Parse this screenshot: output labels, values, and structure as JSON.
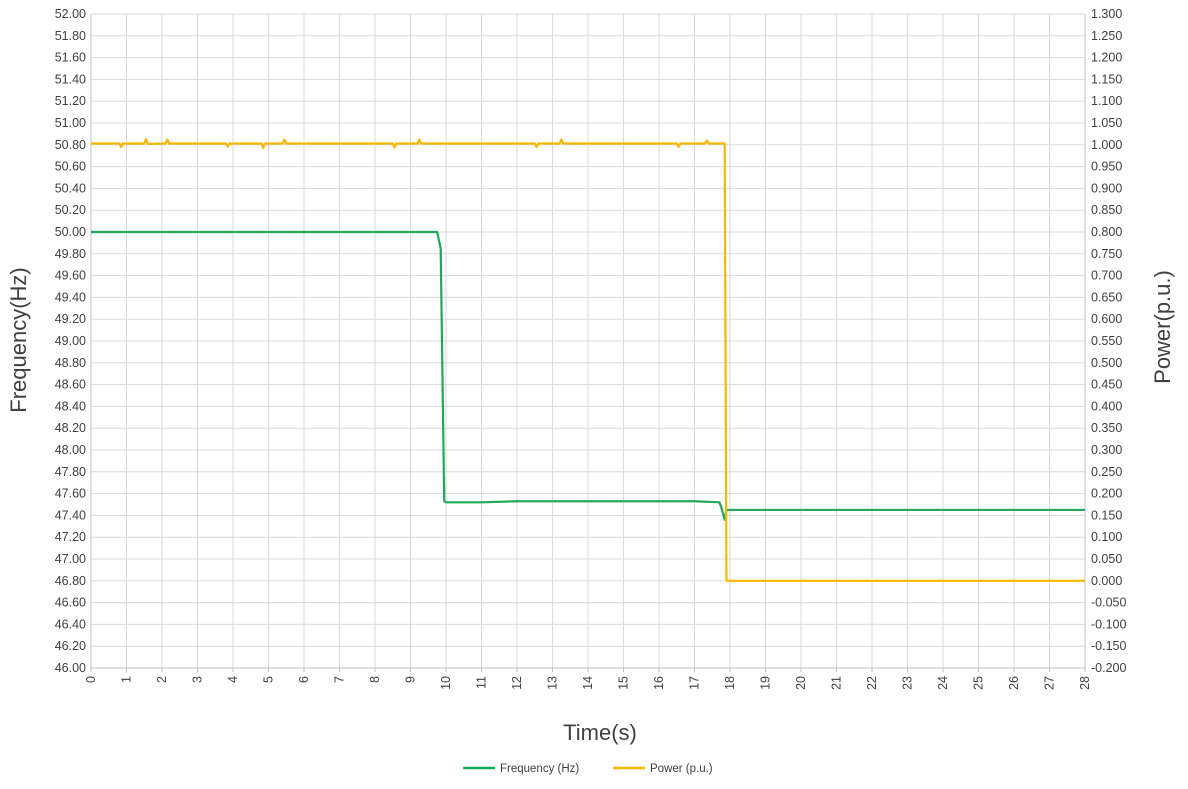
{
  "chart_data": {
    "type": "line",
    "title": "",
    "xlabel": "Time(s)",
    "ylabel": "Frequency(Hz)",
    "y2label": "Power(p.u.)",
    "xlim": [
      0,
      28
    ],
    "ylim": [
      46.0,
      52.0
    ],
    "y2lim": [
      -0.2,
      1.3
    ],
    "grid": true,
    "legend_position": "bottom",
    "x_ticks": [
      "0",
      "1",
      "2",
      "3",
      "4",
      "5",
      "6",
      "7",
      "8",
      "9",
      "10",
      "11",
      "12",
      "13",
      "14",
      "15",
      "16",
      "17",
      "18",
      "19",
      "20",
      "21",
      "22",
      "23",
      "24",
      "25",
      "26",
      "27",
      "28"
    ],
    "y_ticks": [
      "46.00",
      "46.20",
      "46.40",
      "46.60",
      "46.80",
      "47.00",
      "47.20",
      "47.40",
      "47.60",
      "47.80",
      "48.00",
      "48.20",
      "48.40",
      "48.60",
      "48.80",
      "49.00",
      "49.20",
      "49.40",
      "49.60",
      "49.80",
      "50.00",
      "50.20",
      "50.40",
      "50.60",
      "50.80",
      "51.00",
      "51.20",
      "51.40",
      "51.60",
      "51.80",
      "52.00"
    ],
    "y2_ticks": [
      "-0.200",
      "-0.150",
      "-0.100",
      "-0.050",
      "0.000",
      "0.050",
      "0.100",
      "0.150",
      "0.200",
      "0.250",
      "0.300",
      "0.350",
      "0.400",
      "0.450",
      "0.500",
      "0.550",
      "0.600",
      "0.650",
      "0.700",
      "0.750",
      "0.800",
      "0.850",
      "0.900",
      "0.950",
      "1.000",
      "1.050",
      "1.100",
      "1.150",
      "1.200",
      "1.250",
      "1.300"
    ],
    "series": [
      {
        "name": "Frequency (Hz)",
        "axis": "left",
        "color": "#1faa59",
        "points": [
          [
            0,
            50.0
          ],
          [
            1,
            50.0
          ],
          [
            2,
            50.0
          ],
          [
            3,
            50.0
          ],
          [
            4,
            50.0
          ],
          [
            5,
            50.0
          ],
          [
            6,
            50.0
          ],
          [
            7,
            50.0
          ],
          [
            8,
            50.0
          ],
          [
            9,
            50.0
          ],
          [
            9.75,
            50.0
          ],
          [
            9.85,
            49.85
          ],
          [
            9.95,
            47.53
          ],
          [
            10,
            47.52
          ],
          [
            11,
            47.52
          ],
          [
            12,
            47.53
          ],
          [
            13,
            47.53
          ],
          [
            14,
            47.53
          ],
          [
            15,
            47.53
          ],
          [
            16,
            47.53
          ],
          [
            17,
            47.53
          ],
          [
            17.7,
            47.52
          ],
          [
            17.75,
            47.48
          ],
          [
            17.85,
            47.36
          ],
          [
            17.9,
            47.45
          ],
          [
            18,
            47.45
          ],
          [
            19,
            47.45
          ],
          [
            20,
            47.45
          ],
          [
            21,
            47.45
          ],
          [
            22,
            47.45
          ],
          [
            23,
            47.45
          ],
          [
            24,
            47.45
          ],
          [
            25,
            47.45
          ],
          [
            26,
            47.45
          ],
          [
            27,
            47.45
          ],
          [
            28,
            47.45
          ]
        ]
      },
      {
        "name": "Power (p.u.)",
        "axis": "right",
        "color": "#f5b800",
        "points": [
          [
            0,
            1.003
          ],
          [
            0.8,
            1.003
          ],
          [
            0.85,
            0.995
          ],
          [
            0.9,
            1.003
          ],
          [
            1.5,
            1.003
          ],
          [
            1.55,
            1.013
          ],
          [
            1.6,
            1.002
          ],
          [
            2.1,
            1.003
          ],
          [
            2.15,
            1.012
          ],
          [
            2.2,
            1.003
          ],
          [
            3.8,
            1.003
          ],
          [
            3.85,
            0.996
          ],
          [
            3.9,
            1.003
          ],
          [
            4.8,
            1.003
          ],
          [
            4.85,
            0.993
          ],
          [
            4.9,
            1.003
          ],
          [
            5.4,
            1.003
          ],
          [
            5.45,
            1.012
          ],
          [
            5.5,
            1.003
          ],
          [
            8.5,
            1.003
          ],
          [
            8.55,
            0.994
          ],
          [
            8.6,
            1.003
          ],
          [
            9.2,
            1.003
          ],
          [
            9.25,
            1.012
          ],
          [
            9.3,
            1.003
          ],
          [
            12.5,
            1.003
          ],
          [
            12.55,
            0.995
          ],
          [
            12.6,
            1.003
          ],
          [
            13.2,
            1.003
          ],
          [
            13.25,
            1.012
          ],
          [
            13.3,
            1.003
          ],
          [
            16.5,
            1.003
          ],
          [
            16.55,
            0.995
          ],
          [
            16.6,
            1.003
          ],
          [
            17.3,
            1.003
          ],
          [
            17.35,
            1.01
          ],
          [
            17.4,
            1.003
          ],
          [
            17.85,
            1.003
          ],
          [
            17.9,
            0.0
          ],
          [
            28,
            0.0
          ]
        ]
      }
    ]
  }
}
